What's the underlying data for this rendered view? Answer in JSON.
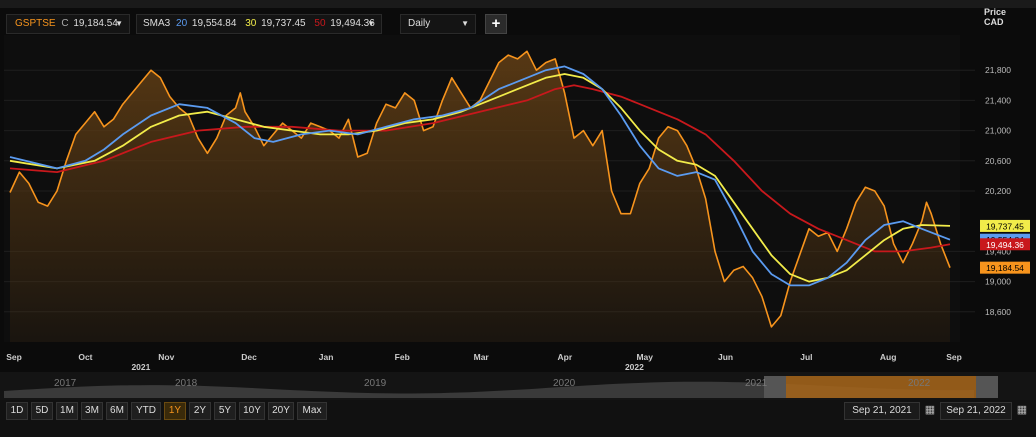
{
  "toolbar": {
    "symbol": "GSPTSE",
    "close_label": "C",
    "close_value": "19,184.54",
    "sma_label": "SMA3",
    "sma1_period": "20",
    "sma1_value": "19,554.84",
    "sma2_period": "30",
    "sma2_value": "19,737.45",
    "sma3_period": "50",
    "sma3_value": "19,494.36",
    "interval": "Daily",
    "add_label": "+"
  },
  "axis_header": {
    "line1": "Price",
    "line2": "CAD"
  },
  "colors": {
    "price": "#f7941d",
    "sma20": "#5b9bf0",
    "sma30": "#f2ec4a",
    "sma50": "#c8181c",
    "area_top": "#5a3a14",
    "background": "#0b0b0b"
  },
  "chart_data": {
    "type": "area",
    "x_labels": [
      {
        "label": "Sep",
        "pos": 0.0
      },
      {
        "label": "Oct",
        "pos": 0.076
      },
      {
        "label": "Nov",
        "pos": 0.162
      },
      {
        "label": "Dec",
        "pos": 0.25
      },
      {
        "label": "Jan",
        "pos": 0.332
      },
      {
        "label": "Feb",
        "pos": 0.413
      },
      {
        "label": "Mar",
        "pos": 0.497
      },
      {
        "label": "Apr",
        "pos": 0.586
      },
      {
        "label": "May",
        "pos": 0.671
      },
      {
        "label": "Jun",
        "pos": 0.757
      },
      {
        "label": "Jul",
        "pos": 0.843
      },
      {
        "label": "Aug",
        "pos": 0.93
      },
      {
        "label": "Sep",
        "pos": 1.0
      }
    ],
    "year_labels": [
      {
        "label": "2021",
        "pos": 0.135
      },
      {
        "label": "2022",
        "pos": 0.66
      }
    ],
    "ylim": [
      18200,
      22200
    ],
    "yticks": [
      18600,
      19000,
      19400,
      20200,
      20600,
      21000,
      21400,
      21800
    ],
    "ytick_labels": [
      "18,600",
      "19,000",
      "19,400",
      "20,200",
      "20,600",
      "21,000",
      "21,400",
      "21,800"
    ],
    "series": [
      {
        "name": "GSPTSE",
        "key": "price",
        "values": [
          [
            0,
            20180
          ],
          [
            0.01,
            20450
          ],
          [
            0.02,
            20300
          ],
          [
            0.03,
            20050
          ],
          [
            0.04,
            20000
          ],
          [
            0.05,
            20200
          ],
          [
            0.06,
            20600
          ],
          [
            0.07,
            20950
          ],
          [
            0.08,
            21100
          ],
          [
            0.09,
            21250
          ],
          [
            0.1,
            21050
          ],
          [
            0.11,
            21150
          ],
          [
            0.12,
            21350
          ],
          [
            0.13,
            21500
          ],
          [
            0.14,
            21650
          ],
          [
            0.15,
            21800
          ],
          [
            0.16,
            21700
          ],
          [
            0.17,
            21450
          ],
          [
            0.18,
            21300
          ],
          [
            0.19,
            21200
          ],
          [
            0.2,
            20900
          ],
          [
            0.21,
            20700
          ],
          [
            0.22,
            20900
          ],
          [
            0.23,
            21200
          ],
          [
            0.24,
            21300
          ],
          [
            0.245,
            21500
          ],
          [
            0.25,
            21250
          ],
          [
            0.26,
            21050
          ],
          [
            0.27,
            20800
          ],
          [
            0.28,
            20950
          ],
          [
            0.29,
            21100
          ],
          [
            0.3,
            21000
          ],
          [
            0.31,
            20900
          ],
          [
            0.32,
            21100
          ],
          [
            0.33,
            21050
          ],
          [
            0.34,
            21000
          ],
          [
            0.35,
            20900
          ],
          [
            0.36,
            21150
          ],
          [
            0.37,
            20650
          ],
          [
            0.38,
            20700
          ],
          [
            0.39,
            21100
          ],
          [
            0.4,
            21350
          ],
          [
            0.41,
            21300
          ],
          [
            0.42,
            21500
          ],
          [
            0.43,
            21400
          ],
          [
            0.44,
            21000
          ],
          [
            0.45,
            21050
          ],
          [
            0.46,
            21400
          ],
          [
            0.47,
            21700
          ],
          [
            0.48,
            21500
          ],
          [
            0.49,
            21300
          ],
          [
            0.5,
            21400
          ],
          [
            0.51,
            21650
          ],
          [
            0.52,
            21900
          ],
          [
            0.53,
            22000
          ],
          [
            0.54,
            21950
          ],
          [
            0.55,
            22050
          ],
          [
            0.56,
            21800
          ],
          [
            0.57,
            21900
          ],
          [
            0.58,
            21950
          ],
          [
            0.59,
            21500
          ],
          [
            0.6,
            20900
          ],
          [
            0.61,
            21000
          ],
          [
            0.62,
            20800
          ],
          [
            0.63,
            21000
          ],
          [
            0.64,
            20200
          ],
          [
            0.65,
            19900
          ],
          [
            0.66,
            19900
          ],
          [
            0.67,
            20300
          ],
          [
            0.68,
            20500
          ],
          [
            0.69,
            20900
          ],
          [
            0.7,
            21050
          ],
          [
            0.71,
            21000
          ],
          [
            0.72,
            20800
          ],
          [
            0.73,
            20500
          ],
          [
            0.74,
            20100
          ],
          [
            0.75,
            19400
          ],
          [
            0.76,
            19000
          ],
          [
            0.77,
            19150
          ],
          [
            0.78,
            19200
          ],
          [
            0.79,
            19050
          ],
          [
            0.8,
            18800
          ],
          [
            0.81,
            18400
          ],
          [
            0.82,
            18550
          ],
          [
            0.83,
            19000
          ],
          [
            0.84,
            19350
          ],
          [
            0.85,
            19700
          ],
          [
            0.86,
            19600
          ],
          [
            0.87,
            19650
          ],
          [
            0.88,
            19400
          ],
          [
            0.89,
            19700
          ],
          [
            0.9,
            20050
          ],
          [
            0.91,
            20250
          ],
          [
            0.92,
            20200
          ],
          [
            0.93,
            20000
          ],
          [
            0.94,
            19500
          ],
          [
            0.95,
            19250
          ],
          [
            0.96,
            19500
          ],
          [
            0.97,
            19800
          ],
          [
            0.975,
            20050
          ],
          [
            0.98,
            19900
          ],
          [
            0.99,
            19500
          ],
          [
            1.0,
            19184.54
          ]
        ]
      },
      {
        "name": "SMA 20",
        "key": "sma20",
        "values": [
          [
            0,
            20650
          ],
          [
            0.05,
            20500
          ],
          [
            0.08,
            20600
          ],
          [
            0.1,
            20750
          ],
          [
            0.12,
            20950
          ],
          [
            0.15,
            21200
          ],
          [
            0.18,
            21350
          ],
          [
            0.21,
            21300
          ],
          [
            0.24,
            21100
          ],
          [
            0.26,
            20900
          ],
          [
            0.28,
            20850
          ],
          [
            0.31,
            20950
          ],
          [
            0.34,
            21000
          ],
          [
            0.37,
            20950
          ],
          [
            0.4,
            21050
          ],
          [
            0.43,
            21150
          ],
          [
            0.46,
            21200
          ],
          [
            0.49,
            21300
          ],
          [
            0.52,
            21550
          ],
          [
            0.55,
            21700
          ],
          [
            0.57,
            21800
          ],
          [
            0.59,
            21850
          ],
          [
            0.61,
            21750
          ],
          [
            0.63,
            21550
          ],
          [
            0.65,
            21200
          ],
          [
            0.67,
            20800
          ],
          [
            0.69,
            20500
          ],
          [
            0.71,
            20400
          ],
          [
            0.73,
            20450
          ],
          [
            0.75,
            20350
          ],
          [
            0.77,
            19900
          ],
          [
            0.79,
            19400
          ],
          [
            0.81,
            19100
          ],
          [
            0.83,
            18950
          ],
          [
            0.85,
            18950
          ],
          [
            0.87,
            19050
          ],
          [
            0.89,
            19250
          ],
          [
            0.91,
            19550
          ],
          [
            0.93,
            19750
          ],
          [
            0.95,
            19800
          ],
          [
            0.97,
            19700
          ],
          [
            1.0,
            19554.84
          ]
        ]
      },
      {
        "name": "SMA 30",
        "key": "sma30",
        "values": [
          [
            0,
            20600
          ],
          [
            0.05,
            20500
          ],
          [
            0.09,
            20600
          ],
          [
            0.12,
            20800
          ],
          [
            0.15,
            21050
          ],
          [
            0.18,
            21200
          ],
          [
            0.21,
            21250
          ],
          [
            0.24,
            21150
          ],
          [
            0.27,
            21050
          ],
          [
            0.3,
            21000
          ],
          [
            0.33,
            20950
          ],
          [
            0.36,
            20950
          ],
          [
            0.39,
            21000
          ],
          [
            0.42,
            21100
          ],
          [
            0.45,
            21150
          ],
          [
            0.48,
            21250
          ],
          [
            0.51,
            21400
          ],
          [
            0.54,
            21550
          ],
          [
            0.57,
            21700
          ],
          [
            0.59,
            21750
          ],
          [
            0.61,
            21700
          ],
          [
            0.63,
            21550
          ],
          [
            0.65,
            21300
          ],
          [
            0.67,
            21000
          ],
          [
            0.69,
            20750
          ],
          [
            0.71,
            20600
          ],
          [
            0.73,
            20550
          ],
          [
            0.75,
            20400
          ],
          [
            0.77,
            20050
          ],
          [
            0.79,
            19700
          ],
          [
            0.81,
            19350
          ],
          [
            0.83,
            19100
          ],
          [
            0.85,
            19000
          ],
          [
            0.87,
            19050
          ],
          [
            0.89,
            19150
          ],
          [
            0.91,
            19350
          ],
          [
            0.93,
            19550
          ],
          [
            0.95,
            19700
          ],
          [
            0.97,
            19750
          ],
          [
            1.0,
            19737.45
          ]
        ]
      },
      {
        "name": "SMA 50",
        "key": "sma50",
        "values": [
          [
            0,
            20500
          ],
          [
            0.05,
            20450
          ],
          [
            0.1,
            20600
          ],
          [
            0.15,
            20850
          ],
          [
            0.2,
            21000
          ],
          [
            0.25,
            21050
          ],
          [
            0.3,
            21050
          ],
          [
            0.35,
            21000
          ],
          [
            0.4,
            21000
          ],
          [
            0.45,
            21100
          ],
          [
            0.5,
            21250
          ],
          [
            0.55,
            21400
          ],
          [
            0.58,
            21550
          ],
          [
            0.6,
            21600
          ],
          [
            0.62,
            21550
          ],
          [
            0.65,
            21450
          ],
          [
            0.68,
            21300
          ],
          [
            0.71,
            21150
          ],
          [
            0.74,
            20950
          ],
          [
            0.77,
            20600
          ],
          [
            0.8,
            20200
          ],
          [
            0.83,
            19900
          ],
          [
            0.86,
            19700
          ],
          [
            0.89,
            19550
          ],
          [
            0.92,
            19400
          ],
          [
            0.95,
            19400
          ],
          [
            0.98,
            19450
          ],
          [
            1.0,
            19494.36
          ]
        ]
      }
    ],
    "last_values": [
      {
        "label": "19,737.45",
        "value": 19737.45,
        "key": "sma30",
        "text_color": "#000"
      },
      {
        "label": "19,554.84",
        "value": 19554.84,
        "key": "sma20",
        "text_color": "#000"
      },
      {
        "label": "19,494.36",
        "value": 19494.36,
        "key": "sma50",
        "text_color": "#fff"
      },
      {
        "label": "19,184.54",
        "value": 19184.54,
        "key": "price",
        "text_color": "#000"
      }
    ]
  },
  "navigator": {
    "years": [
      "2017",
      "2018",
      "2019",
      "2020",
      "2021",
      "2022"
    ]
  },
  "ranges": [
    "1D",
    "5D",
    "1M",
    "3M",
    "6M",
    "YTD",
    "1Y",
    "2Y",
    "5Y",
    "10Y",
    "20Y",
    "Max"
  ],
  "active_range": "1Y",
  "dates": {
    "from": "Sep 21, 2021",
    "to": "Sep 21, 2022"
  }
}
